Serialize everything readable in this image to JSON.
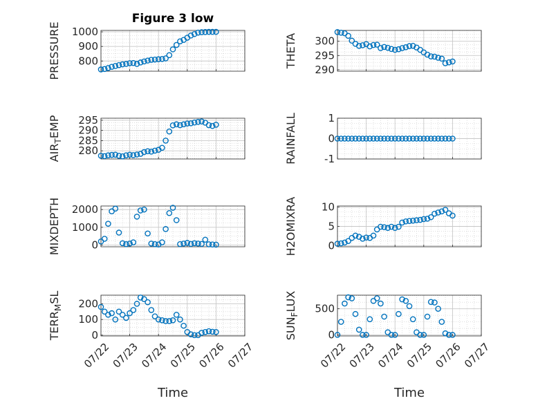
{
  "colors": {
    "series": "#0072BD",
    "grid": "#c8c8c8",
    "axis": "#262626",
    "background": "#ffffff"
  },
  "figure": {
    "title": "Figure 3 low"
  },
  "chart_data": [
    {
      "id": "pressure",
      "type": "scatter",
      "title": "Figure 3 low",
      "ylabel": "PRESSURE",
      "ylabel_sub": "",
      "ylabel_tail": "",
      "xlabel": "",
      "xlim": [
        "07/22",
        "07/27"
      ],
      "ylim": [
        730,
        1010
      ],
      "yticks": [
        800,
        900,
        1000
      ],
      "xtick_labels_shown": false,
      "x": [
        "07/22 00:00",
        "07/22 03:00",
        "07/22 06:00",
        "07/22 09:00",
        "07/22 12:00",
        "07/22 15:00",
        "07/22 18:00",
        "07/22 21:00",
        "07/23 00:00",
        "07/23 03:00",
        "07/23 06:00",
        "07/23 09:00",
        "07/23 12:00",
        "07/23 15:00",
        "07/23 18:00",
        "07/23 21:00",
        "07/24 00:00",
        "07/24 03:00",
        "07/24 06:00",
        "07/24 09:00",
        "07/24 12:00",
        "07/24 15:00",
        "07/24 18:00",
        "07/24 21:00",
        "07/25 00:00",
        "07/25 03:00",
        "07/25 06:00",
        "07/25 09:00",
        "07/25 12:00",
        "07/25 15:00",
        "07/25 18:00",
        "07/25 21:00",
        "07/26 00:00"
      ],
      "y": [
        742,
        745,
        752,
        760,
        766,
        772,
        777,
        780,
        785,
        786,
        780,
        790,
        797,
        803,
        808,
        810,
        812,
        814,
        818,
        840,
        880,
        910,
        935,
        945,
        960,
        975,
        985,
        995,
        998,
        999,
        1000,
        1000,
        1000
      ]
    },
    {
      "id": "theta",
      "type": "scatter",
      "title": "",
      "ylabel": "THETA",
      "ylabel_sub": "",
      "ylabel_tail": "",
      "xlabel": "",
      "xlim": [
        "07/22",
        "07/27"
      ],
      "ylim": [
        289.5,
        303.8
      ],
      "yticks": [
        290,
        295,
        300
      ],
      "xtick_labels_shown": false,
      "x": [
        "07/22 00:00",
        "07/22 03:00",
        "07/22 06:00",
        "07/22 09:00",
        "07/22 12:00",
        "07/22 15:00",
        "07/22 18:00",
        "07/22 21:00",
        "07/23 00:00",
        "07/23 03:00",
        "07/23 06:00",
        "07/23 09:00",
        "07/23 12:00",
        "07/23 15:00",
        "07/23 18:00",
        "07/23 21:00",
        "07/24 00:00",
        "07/24 03:00",
        "07/24 06:00",
        "07/24 09:00",
        "07/24 12:00",
        "07/24 15:00",
        "07/24 18:00",
        "07/24 21:00",
        "07/25 00:00",
        "07/25 03:00",
        "07/25 06:00",
        "07/25 09:00",
        "07/25 12:00",
        "07/25 15:00",
        "07/25 18:00",
        "07/25 21:00",
        "07/26 00:00"
      ],
      "y": [
        303.2,
        303.0,
        302.8,
        301.9,
        300.2,
        299.1,
        298.4,
        298.6,
        299.0,
        298.2,
        298.7,
        298.8,
        297.6,
        298.0,
        297.7,
        297.3,
        297.0,
        297.2,
        297.6,
        297.9,
        298.3,
        298.4,
        297.8,
        297.0,
        296.1,
        295.3,
        294.7,
        294.6,
        294.2,
        293.9,
        292.3,
        292.6,
        292.9
      ]
    },
    {
      "id": "air_temp",
      "type": "scatter",
      "title": "",
      "ylabel": "AIR",
      "ylabel_sub": "T",
      "ylabel_tail": "EMP",
      "xlabel": "",
      "xlim": [
        "07/22",
        "07/27"
      ],
      "ylim": [
        276,
        296
      ],
      "yticks": [
        280,
        285,
        290,
        295
      ],
      "xtick_labels_shown": false,
      "x": [
        "07/22 00:00",
        "07/22 03:00",
        "07/22 06:00",
        "07/22 09:00",
        "07/22 12:00",
        "07/22 15:00",
        "07/22 18:00",
        "07/22 21:00",
        "07/23 00:00",
        "07/23 03:00",
        "07/23 06:00",
        "07/23 09:00",
        "07/23 12:00",
        "07/23 15:00",
        "07/23 18:00",
        "07/23 21:00",
        "07/24 00:00",
        "07/24 03:00",
        "07/24 06:00",
        "07/24 09:00",
        "07/24 12:00",
        "07/24 15:00",
        "07/24 18:00",
        "07/24 21:00",
        "07/25 00:00",
        "07/25 03:00",
        "07/25 06:00",
        "07/25 09:00",
        "07/25 12:00",
        "07/25 15:00",
        "07/25 18:00",
        "07/25 21:00",
        "07/26 00:00"
      ],
      "y": [
        277.6,
        277.4,
        277.8,
        278.0,
        278.1,
        277.6,
        277.3,
        277.8,
        278.1,
        277.9,
        278.2,
        278.5,
        279.4,
        279.8,
        279.6,
        280.1,
        280.5,
        281.5,
        285.0,
        289.5,
        292.5,
        293.0,
        292.6,
        293.0,
        293.4,
        293.5,
        293.9,
        294.2,
        294.4,
        293.8,
        292.6,
        292.2,
        292.8
      ]
    },
    {
      "id": "rainfall",
      "type": "scatter",
      "title": "",
      "ylabel": "RAINFALL",
      "ylabel_sub": "",
      "ylabel_tail": "",
      "xlabel": "",
      "xlim": [
        "07/22",
        "07/27"
      ],
      "ylim": [
        -1,
        1
      ],
      "yticks": [
        -1,
        0,
        1
      ],
      "xtick_labels_shown": false,
      "x": [
        "07/22 00:00",
        "07/22 03:00",
        "07/22 06:00",
        "07/22 09:00",
        "07/22 12:00",
        "07/22 15:00",
        "07/22 18:00",
        "07/22 21:00",
        "07/23 00:00",
        "07/23 03:00",
        "07/23 06:00",
        "07/23 09:00",
        "07/23 12:00",
        "07/23 15:00",
        "07/23 18:00",
        "07/23 21:00",
        "07/24 00:00",
        "07/24 03:00",
        "07/24 06:00",
        "07/24 09:00",
        "07/24 12:00",
        "07/24 15:00",
        "07/24 18:00",
        "07/24 21:00",
        "07/25 00:00",
        "07/25 03:00",
        "07/25 06:00",
        "07/25 09:00",
        "07/25 12:00",
        "07/25 15:00",
        "07/25 18:00",
        "07/25 21:00",
        "07/26 00:00"
      ],
      "y": [
        0,
        0,
        0,
        0,
        0,
        0,
        0,
        0,
        0,
        0,
        0,
        0,
        0,
        0,
        0,
        0,
        0,
        0,
        0,
        0,
        0,
        0,
        0,
        0,
        0,
        0,
        0,
        0,
        0,
        0,
        0,
        0,
        0
      ]
    },
    {
      "id": "mixdepth",
      "type": "scatter",
      "title": "",
      "ylabel": "MIXDEPTH",
      "ylabel_sub": "",
      "ylabel_tail": "",
      "xlabel": "",
      "xlim": [
        "07/22",
        "07/27"
      ],
      "ylim": [
        -100,
        2200
      ],
      "yticks": [
        0,
        1000,
        2000
      ],
      "xtick_labels_shown": false,
      "x": [
        "07/22 00:00",
        "07/22 03:00",
        "07/22 06:00",
        "07/22 09:00",
        "07/22 12:00",
        "07/22 15:00",
        "07/22 18:00",
        "07/22 21:00",
        "07/23 00:00",
        "07/23 03:00",
        "07/23 06:00",
        "07/23 09:00",
        "07/23 12:00",
        "07/23 15:00",
        "07/23 18:00",
        "07/23 21:00",
        "07/24 00:00",
        "07/24 03:00",
        "07/24 06:00",
        "07/24 09:00",
        "07/24 12:00",
        "07/24 15:00",
        "07/24 18:00",
        "07/24 21:00",
        "07/25 00:00",
        "07/25 03:00",
        "07/25 06:00",
        "07/25 09:00",
        "07/25 12:00",
        "07/25 15:00",
        "07/25 18:00",
        "07/25 21:00",
        "07/26 00:00"
      ],
      "y": [
        200,
        350,
        1200,
        1900,
        2050,
        700,
        100,
        50,
        80,
        150,
        1600,
        1950,
        2000,
        650,
        80,
        50,
        30,
        150,
        900,
        1800,
        2100,
        1400,
        50,
        80,
        120,
        60,
        100,
        80,
        60,
        300,
        40,
        30,
        20
      ]
    },
    {
      "id": "h2omixra",
      "type": "scatter",
      "title": "",
      "ylabel": "H2OMIXRA",
      "ylabel_sub": "",
      "ylabel_tail": "",
      "xlabel": "",
      "xlim": [
        "07/22",
        "07/27"
      ],
      "ylim": [
        -0.3,
        10.3
      ],
      "yticks": [
        0,
        5,
        10
      ],
      "xtick_labels_shown": false,
      "x": [
        "07/22 00:00",
        "07/22 03:00",
        "07/22 06:00",
        "07/22 09:00",
        "07/22 12:00",
        "07/22 15:00",
        "07/22 18:00",
        "07/22 21:00",
        "07/23 00:00",
        "07/23 03:00",
        "07/23 06:00",
        "07/23 09:00",
        "07/23 12:00",
        "07/23 15:00",
        "07/23 18:00",
        "07/23 21:00",
        "07/24 00:00",
        "07/24 03:00",
        "07/24 06:00",
        "07/24 09:00",
        "07/24 12:00",
        "07/24 15:00",
        "07/24 18:00",
        "07/24 21:00",
        "07/25 00:00",
        "07/25 03:00",
        "07/25 06:00",
        "07/25 09:00",
        "07/25 12:00",
        "07/25 15:00",
        "07/25 18:00",
        "07/25 21:00",
        "07/26 00:00"
      ],
      "y": [
        0.5,
        0.6,
        0.8,
        1.2,
        2.0,
        2.6,
        2.3,
        1.8,
        2.1,
        2.0,
        2.6,
        4.2,
        4.9,
        4.8,
        4.6,
        4.9,
        4.6,
        4.9,
        6.0,
        6.3,
        6.4,
        6.5,
        6.6,
        6.7,
        6.9,
        7.0,
        7.4,
        8.3,
        8.6,
        8.9,
        9.3,
        8.4,
        7.8
      ]
    },
    {
      "id": "terr_msl",
      "type": "scatter",
      "title": "",
      "ylabel": "TERR",
      "ylabel_sub": "M",
      "ylabel_tail": "SL",
      "xlabel": "Time",
      "xlim": [
        "07/22",
        "07/27"
      ],
      "ylim": [
        -5,
        255
      ],
      "yticks": [
        0,
        100,
        200
      ],
      "xticks": [
        "07/22",
        "07/23",
        "07/24",
        "07/25",
        "07/26",
        "07/27"
      ],
      "xtick_labels_shown": true,
      "x": [
        "07/22 00:00",
        "07/22 03:00",
        "07/22 06:00",
        "07/22 09:00",
        "07/22 12:00",
        "07/22 15:00",
        "07/22 18:00",
        "07/22 21:00",
        "07/23 00:00",
        "07/23 03:00",
        "07/23 06:00",
        "07/23 09:00",
        "07/23 12:00",
        "07/23 15:00",
        "07/23 18:00",
        "07/23 21:00",
        "07/24 00:00",
        "07/24 03:00",
        "07/24 06:00",
        "07/24 09:00",
        "07/24 12:00",
        "07/24 15:00",
        "07/24 18:00",
        "07/24 21:00",
        "07/25 00:00",
        "07/25 03:00",
        "07/25 06:00",
        "07/25 09:00",
        "07/25 12:00",
        "07/25 15:00",
        "07/25 18:00",
        "07/25 21:00",
        "07/26 00:00"
      ],
      "y": [
        180,
        150,
        130,
        140,
        100,
        150,
        130,
        110,
        140,
        160,
        200,
        240,
        230,
        210,
        160,
        120,
        100,
        95,
        90,
        90,
        95,
        130,
        100,
        60,
        20,
        5,
        0,
        0,
        15,
        20,
        25,
        22,
        20
      ]
    },
    {
      "id": "sun_flux",
      "type": "scatter",
      "title": "",
      "ylabel": "SUN",
      "ylabel_sub": "F",
      "ylabel_tail": "LUX",
      "xlabel": "Time",
      "xlim": [
        "07/22",
        "07/27"
      ],
      "ylim": [
        -20,
        760
      ],
      "yticks": [
        0,
        500
      ],
      "xticks": [
        "07/22",
        "07/23",
        "07/24",
        "07/25",
        "07/26",
        "07/27"
      ],
      "xtick_labels_shown": true,
      "x": [
        "07/22 00:00",
        "07/22 03:00",
        "07/22 06:00",
        "07/22 09:00",
        "07/22 12:00",
        "07/22 15:00",
        "07/22 18:00",
        "07/22 21:00",
        "07/23 00:00",
        "07/23 03:00",
        "07/23 06:00",
        "07/23 09:00",
        "07/23 12:00",
        "07/23 15:00",
        "07/23 18:00",
        "07/23 21:00",
        "07/24 00:00",
        "07/24 03:00",
        "07/24 06:00",
        "07/24 09:00",
        "07/24 12:00",
        "07/24 15:00",
        "07/24 18:00",
        "07/24 21:00",
        "07/25 00:00",
        "07/25 03:00",
        "07/25 06:00",
        "07/25 09:00",
        "07/25 12:00",
        "07/25 15:00",
        "07/25 18:00",
        "07/25 21:00",
        "07/26 00:00"
      ],
      "y": [
        0,
        250,
        600,
        720,
        700,
        400,
        100,
        0,
        0,
        300,
        650,
        700,
        600,
        350,
        50,
        0,
        0,
        400,
        680,
        650,
        550,
        300,
        50,
        0,
        0,
        350,
        630,
        620,
        500,
        250,
        30,
        0,
        0
      ]
    }
  ]
}
